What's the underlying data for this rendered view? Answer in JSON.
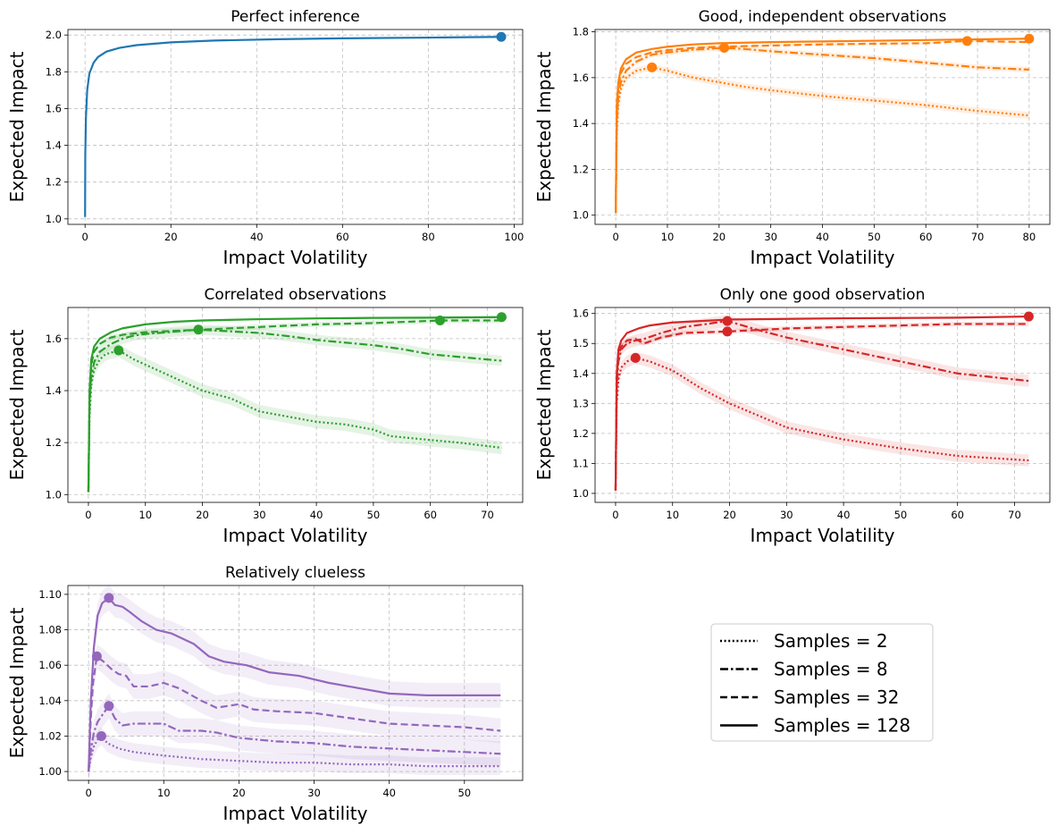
{
  "legend": {
    "entries": [
      {
        "label": "Samples = 2",
        "dash": "dotted"
      },
      {
        "label": "Samples = 8",
        "dash": "dashdot"
      },
      {
        "label": "Samples = 32",
        "dash": "dashed"
      },
      {
        "label": "Samples = 128",
        "dash": "solid"
      }
    ],
    "placement": "bottom-right-empty-cell"
  },
  "chart_data": [
    {
      "type": "line",
      "title": "Perfect inference",
      "xlabel": "Impact Volatility",
      "ylabel": "Expected Impact",
      "xlim": [
        -4,
        102
      ],
      "ylim": [
        0.97,
        2.03
      ],
      "xticks": [
        0,
        20,
        40,
        60,
        80,
        100
      ],
      "yticks": [
        1.0,
        1.2,
        1.4,
        1.6,
        1.8,
        2.0
      ],
      "ytick_labels": [
        "1.0",
        "1.2",
        "1.4",
        "1.6",
        "1.8",
        "2.0"
      ],
      "grid": true,
      "color": "#1f77b4",
      "series": [
        {
          "samples": 128,
          "dash": "solid",
          "x": [
            0,
            0.05,
            0.2,
            0.5,
            1,
            2,
            3,
            5,
            8,
            12,
            20,
            30,
            45,
            60,
            80,
            97
          ],
          "y": [
            1.01,
            1.35,
            1.55,
            1.7,
            1.79,
            1.85,
            1.88,
            1.91,
            1.93,
            1.945,
            1.96,
            1.97,
            1.977,
            1.982,
            1.986,
            1.99
          ],
          "band": 0.0,
          "marker": [
            97,
            1.99
          ]
        }
      ]
    },
    {
      "type": "line",
      "title": "Good, independent observations",
      "xlabel": "Impact Volatility",
      "ylabel": "Expected Impact",
      "xlim": [
        -4,
        84
      ],
      "ylim": [
        0.96,
        1.81
      ],
      "xticks": [
        0,
        10,
        20,
        30,
        40,
        50,
        60,
        70,
        80
      ],
      "yticks": [
        1.0,
        1.2,
        1.4,
        1.6,
        1.8
      ],
      "ytick_labels": [
        "1.0",
        "1.2",
        "1.4",
        "1.6",
        "1.8"
      ],
      "grid": true,
      "color": "#ff7f0e",
      "series": [
        {
          "samples": 2,
          "dash": "dotted",
          "x": [
            0,
            0.2,
            0.5,
            1,
            2,
            4,
            7,
            10,
            15,
            20,
            25,
            30,
            40,
            50,
            60,
            70,
            80
          ],
          "y": [
            1.01,
            1.35,
            1.48,
            1.55,
            1.6,
            1.63,
            1.645,
            1.63,
            1.6,
            1.58,
            1.56,
            1.545,
            1.52,
            1.5,
            1.48,
            1.455,
            1.435
          ],
          "band": 0.015,
          "marker": [
            7,
            1.645
          ]
        },
        {
          "samples": 8,
          "dash": "dashdot",
          "x": [
            0,
            0.2,
            0.5,
            1,
            2,
            4,
            7,
            10,
            15,
            21,
            25,
            30,
            40,
            50,
            60,
            70,
            80
          ],
          "y": [
            1.01,
            1.4,
            1.52,
            1.58,
            1.63,
            1.67,
            1.7,
            1.71,
            1.722,
            1.73,
            1.725,
            1.715,
            1.7,
            1.685,
            1.665,
            1.645,
            1.635
          ],
          "band": 0.012,
          "marker": [
            21,
            1.73
          ]
        },
        {
          "samples": 32,
          "dash": "dashed",
          "x": [
            0,
            0.2,
            0.5,
            1,
            2,
            4,
            7,
            10,
            15,
            20,
            30,
            40,
            50,
            60,
            68,
            80
          ],
          "y": [
            1.01,
            1.45,
            1.56,
            1.62,
            1.66,
            1.69,
            1.71,
            1.72,
            1.73,
            1.735,
            1.74,
            1.745,
            1.748,
            1.75,
            1.76,
            1.755
          ],
          "band": 0.005,
          "marker": [
            68,
            1.76
          ]
        },
        {
          "samples": 128,
          "dash": "solid",
          "x": [
            0,
            0.2,
            0.5,
            1,
            2,
            4,
            7,
            10,
            15,
            20,
            30,
            40,
            50,
            60,
            70,
            80
          ],
          "y": [
            1.01,
            1.48,
            1.58,
            1.64,
            1.68,
            1.71,
            1.725,
            1.735,
            1.745,
            1.75,
            1.755,
            1.758,
            1.761,
            1.764,
            1.767,
            1.77
          ],
          "band": 0.003,
          "marker": [
            80,
            1.77
          ]
        }
      ]
    },
    {
      "type": "line",
      "title": "Correlated observations",
      "xlabel": "Impact Volatility",
      "ylabel": "Expected Impact",
      "xlim": [
        -3.6,
        76.2
      ],
      "ylim": [
        0.97,
        1.72
      ],
      "xticks": [
        0,
        10,
        20,
        30,
        40,
        50,
        60,
        70
      ],
      "yticks": [
        1.0,
        1.2,
        1.4,
        1.6
      ],
      "ytick_labels": [
        "1.0",
        "1.2",
        "1.4",
        "1.6"
      ],
      "grid": true,
      "color": "#2ca02c",
      "series": [
        {
          "samples": 2,
          "dash": "dotted",
          "x": [
            0,
            0.2,
            0.5,
            1,
            2,
            3,
            5.3,
            8,
            12,
            16,
            20,
            25,
            30,
            35,
            40,
            45,
            50,
            53,
            60,
            65,
            72.5
          ],
          "y": [
            1.01,
            1.3,
            1.42,
            1.48,
            1.52,
            1.54,
            1.555,
            1.52,
            1.48,
            1.44,
            1.4,
            1.37,
            1.32,
            1.3,
            1.28,
            1.27,
            1.25,
            1.225,
            1.21,
            1.2,
            1.18
          ],
          "band": 0.025,
          "marker": [
            5.3,
            1.555
          ]
        },
        {
          "samples": 8,
          "dash": "dashdot",
          "x": [
            0,
            0.2,
            0.5,
            1,
            2,
            4,
            6,
            8,
            10,
            14,
            19.3,
            25,
            30,
            35,
            40,
            45,
            50,
            55,
            60,
            65,
            72.5
          ],
          "y": [
            1.01,
            1.35,
            1.45,
            1.51,
            1.55,
            1.58,
            1.6,
            1.612,
            1.618,
            1.625,
            1.635,
            1.628,
            1.622,
            1.61,
            1.595,
            1.585,
            1.575,
            1.56,
            1.54,
            1.53,
            1.515
          ],
          "band": 0.02,
          "marker": [
            19.3,
            1.635
          ]
        },
        {
          "samples": 32,
          "dash": "dashed",
          "x": [
            0,
            0.2,
            0.5,
            1,
            2,
            4,
            6,
            10,
            15,
            20,
            25,
            30,
            40,
            50,
            61.7,
            72.5
          ],
          "y": [
            1.01,
            1.38,
            1.5,
            1.55,
            1.58,
            1.605,
            1.615,
            1.625,
            1.63,
            1.635,
            1.64,
            1.645,
            1.655,
            1.66,
            1.67,
            1.67
          ],
          "band": 0.01,
          "marker": [
            61.7,
            1.67
          ]
        },
        {
          "samples": 128,
          "dash": "solid",
          "x": [
            0,
            0.2,
            0.5,
            1,
            2,
            4,
            6,
            10,
            15,
            20,
            30,
            40,
            50,
            60,
            72.5
          ],
          "y": [
            1.01,
            1.4,
            1.52,
            1.57,
            1.6,
            1.625,
            1.64,
            1.655,
            1.665,
            1.67,
            1.675,
            1.678,
            1.68,
            1.681,
            1.683
          ],
          "band": 0.004,
          "marker": [
            72.5,
            1.683
          ]
        }
      ]
    },
    {
      "type": "line",
      "title": "Only one good observation",
      "xlabel": "Impact Volatility",
      "ylabel": "Expected Impact",
      "xlim": [
        -3.6,
        76.2
      ],
      "ylim": [
        0.97,
        1.62
      ],
      "xticks": [
        0,
        10,
        20,
        30,
        40,
        50,
        60,
        70
      ],
      "yticks": [
        1.0,
        1.1,
        1.2,
        1.3,
        1.4,
        1.5,
        1.6
      ],
      "ytick_labels": [
        "1.0",
        "1.1",
        "1.2",
        "1.3",
        "1.4",
        "1.5",
        "1.6"
      ],
      "grid": true,
      "color": "#d62728",
      "series": [
        {
          "samples": 2,
          "dash": "dotted",
          "x": [
            0,
            0.2,
            0.5,
            1,
            2,
            3.5,
            6,
            10,
            15,
            20,
            25,
            30,
            40,
            50,
            60,
            72.5
          ],
          "y": [
            1.01,
            1.3,
            1.38,
            1.42,
            1.44,
            1.452,
            1.44,
            1.41,
            1.35,
            1.3,
            1.26,
            1.22,
            1.18,
            1.15,
            1.125,
            1.11
          ],
          "band": 0.02,
          "marker": [
            3.5,
            1.452
          ]
        },
        {
          "samples": 8,
          "dash": "dashdot",
          "x": [
            0,
            0.2,
            0.5,
            1,
            2,
            3.5,
            5,
            8,
            12,
            16,
            19.6,
            25,
            30,
            35,
            40,
            45,
            50,
            55,
            60,
            65,
            72.5
          ],
          "y": [
            1.01,
            1.35,
            1.44,
            1.48,
            1.5,
            1.51,
            1.515,
            1.535,
            1.555,
            1.565,
            1.575,
            1.545,
            1.52,
            1.5,
            1.48,
            1.46,
            1.44,
            1.42,
            1.4,
            1.39,
            1.375
          ],
          "band": 0.02,
          "marker": [
            19.6,
            1.575
          ]
        },
        {
          "samples": 32,
          "dash": "dashed",
          "x": [
            0,
            0.2,
            0.5,
            1,
            2,
            3.5,
            5,
            8,
            12,
            19.6,
            25,
            30,
            40,
            50,
            60,
            72.5
          ],
          "y": [
            1.01,
            1.38,
            1.46,
            1.49,
            1.51,
            1.515,
            1.5,
            1.52,
            1.535,
            1.54,
            1.545,
            1.55,
            1.555,
            1.56,
            1.565,
            1.565
          ],
          "band": 0.008,
          "marker": [
            19.6,
            1.54
          ]
        },
        {
          "samples": 128,
          "dash": "solid",
          "x": [
            0,
            0.2,
            0.5,
            1,
            2,
            4,
            6,
            10,
            15,
            20,
            30,
            40,
            50,
            60,
            72.5
          ],
          "y": [
            1.01,
            1.4,
            1.48,
            1.51,
            1.535,
            1.55,
            1.56,
            1.57,
            1.575,
            1.58,
            1.582,
            1.584,
            1.585,
            1.586,
            1.59
          ],
          "band": 0.004,
          "marker": [
            72.5,
            1.59
          ]
        }
      ]
    },
    {
      "type": "line",
      "title": "Relatively clueless",
      "xlabel": "Impact Volatility",
      "ylabel": "Expected Impact",
      "xlim": [
        -2.75,
        57.75
      ],
      "ylim": [
        0.995,
        1.105
      ],
      "xticks": [
        0,
        10,
        20,
        30,
        40,
        50
      ],
      "yticks": [
        1.0,
        1.02,
        1.04,
        1.06,
        1.08,
        1.1
      ],
      "ytick_labels": [
        "1.00",
        "1.02",
        "1.04",
        "1.06",
        "1.08",
        "1.10"
      ],
      "grid": true,
      "color": "#9467bd",
      "series": [
        {
          "samples": 2,
          "dash": "dotted",
          "x": [
            0,
            0.3,
            0.7,
            1.2,
            1.7,
            2.5,
            4,
            6,
            8,
            10,
            15,
            20,
            25,
            30,
            35,
            40,
            45,
            50,
            54.8
          ],
          "y": [
            1.0,
            1.008,
            1.014,
            1.018,
            1.02,
            1.016,
            1.013,
            1.011,
            1.01,
            1.009,
            1.007,
            1.006,
            1.005,
            1.005,
            1.004,
            1.004,
            1.003,
            1.003,
            1.003
          ],
          "band": 0.005,
          "marker": [
            1.7,
            1.02
          ]
        },
        {
          "samples": 8,
          "dash": "dashdot",
          "x": [
            0,
            0.3,
            0.7,
            1.2,
            2,
            2.7,
            3.5,
            4.5,
            6,
            8,
            10,
            12,
            15,
            17,
            20,
            25,
            30,
            35,
            40,
            45,
            50,
            54.8
          ],
          "y": [
            1.0,
            1.012,
            1.022,
            1.028,
            1.033,
            1.037,
            1.03,
            1.026,
            1.027,
            1.027,
            1.027,
            1.023,
            1.023,
            1.022,
            1.019,
            1.017,
            1.016,
            1.014,
            1.013,
            1.012,
            1.011,
            1.01
          ],
          "band": 0.007,
          "marker": [
            2.7,
            1.037
          ]
        },
        {
          "samples": 32,
          "dash": "dashed",
          "x": [
            0,
            0.3,
            0.6,
            1.1,
            2,
            3,
            4,
            5,
            6,
            8,
            10,
            12,
            15,
            17,
            20,
            22,
            25,
            30,
            35,
            40,
            45,
            50,
            54.8
          ],
          "y": [
            1.0,
            1.03,
            1.05,
            1.065,
            1.062,
            1.058,
            1.055,
            1.054,
            1.048,
            1.048,
            1.05,
            1.047,
            1.04,
            1.036,
            1.038,
            1.035,
            1.034,
            1.033,
            1.03,
            1.027,
            1.026,
            1.025,
            1.023
          ],
          "band": 0.007,
          "marker": [
            1.1,
            1.065
          ]
        },
        {
          "samples": 128,
          "dash": "solid",
          "x": [
            0,
            0.3,
            0.7,
            1.2,
            1.8,
            2.7,
            3.5,
            4.5,
            5.5,
            7,
            9,
            11,
            14,
            16,
            18,
            21,
            24,
            28,
            32,
            36,
            40,
            45,
            50,
            54.8
          ],
          "y": [
            1.0,
            1.04,
            1.07,
            1.088,
            1.095,
            1.098,
            1.094,
            1.093,
            1.09,
            1.085,
            1.08,
            1.078,
            1.072,
            1.065,
            1.062,
            1.06,
            1.056,
            1.054,
            1.05,
            1.047,
            1.044,
            1.043,
            1.043,
            1.043
          ],
          "band": 0.007,
          "marker": [
            2.7,
            1.098
          ]
        }
      ]
    }
  ]
}
